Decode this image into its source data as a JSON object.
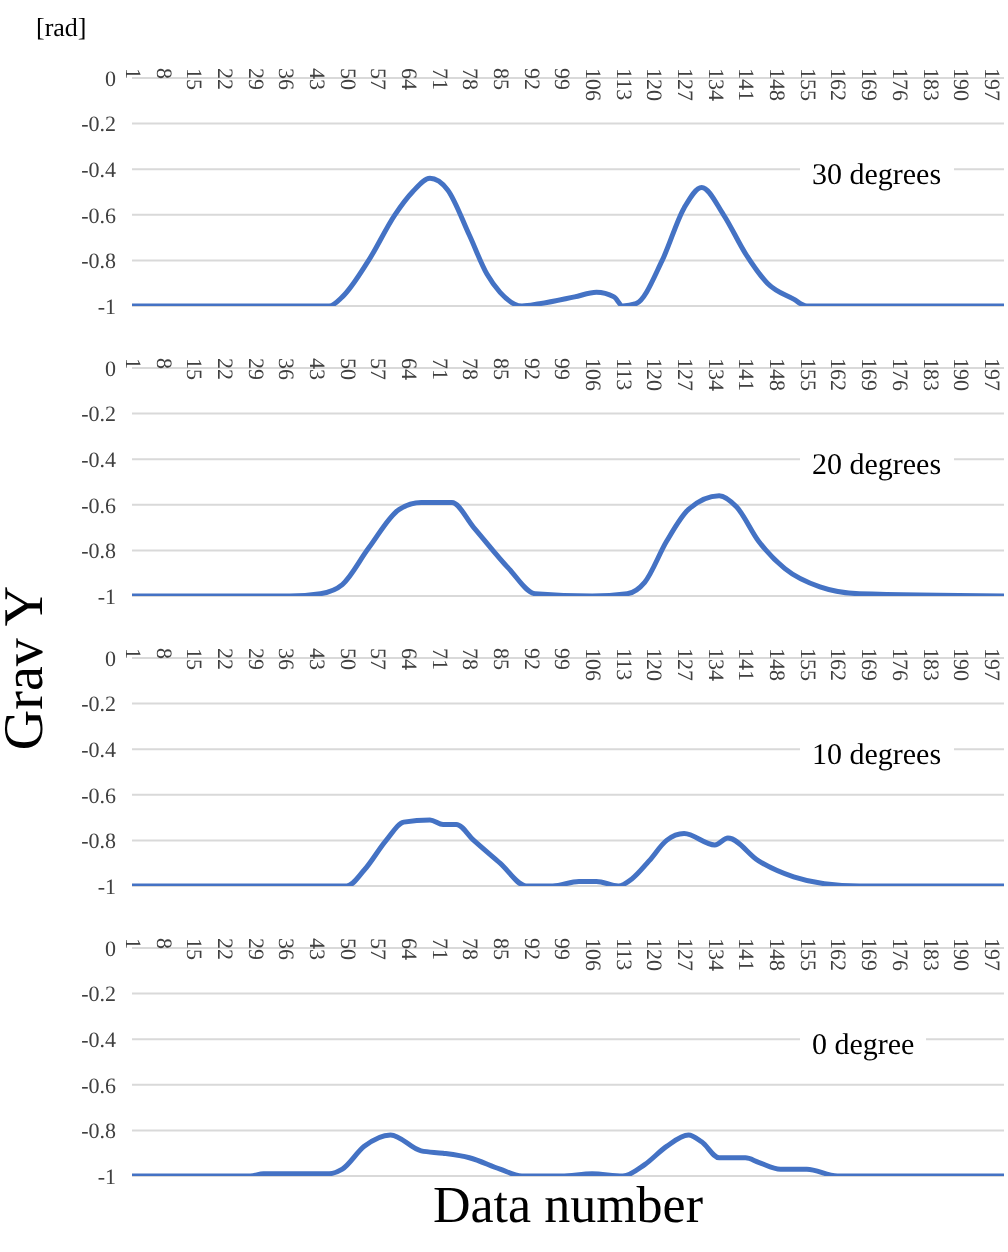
{
  "chart_data": [
    {
      "type": "line",
      "ylabel": "[rad]",
      "annotations": [
        "30 degrees"
      ],
      "color": "#4472c4",
      "grid": "y",
      "xlim": [
        1,
        200
      ],
      "xticks": [
        1,
        8,
        15,
        22,
        29,
        36,
        43,
        50,
        57,
        64,
        71,
        78,
        85,
        92,
        99,
        106,
        113,
        120,
        127,
        134,
        141,
        148,
        155,
        162,
        169,
        176,
        183,
        190,
        197
      ],
      "ylim": [
        -1,
        0
      ],
      "yticks": [
        0,
        -0.2,
        -0.4,
        -0.6,
        -0.8,
        -1
      ],
      "x": [
        1,
        46,
        49,
        55,
        61,
        65,
        69,
        73,
        78,
        82,
        85,
        90,
        94,
        102,
        107,
        111,
        113,
        116,
        122,
        127,
        131,
        136,
        141,
        146,
        152,
        155,
        200
      ],
      "values": [
        -1,
        -1,
        -0.96,
        -0.8,
        -0.6,
        -0.5,
        -0.44,
        -0.49,
        -0.69,
        -0.86,
        -0.94,
        -1,
        -0.99,
        -0.96,
        -0.94,
        -0.96,
        -1,
        -0.99,
        -0.8,
        -0.57,
        -0.48,
        -0.6,
        -0.77,
        -0.9,
        -0.97,
        -1,
        -1
      ]
    },
    {
      "type": "line",
      "annotations": [
        "20 degrees"
      ],
      "color": "#4472c4",
      "grid": "y",
      "xlim": [
        1,
        200
      ],
      "xticks": [
        1,
        8,
        15,
        22,
        29,
        36,
        43,
        50,
        57,
        64,
        71,
        78,
        85,
        92,
        99,
        106,
        113,
        120,
        127,
        134,
        141,
        148,
        155,
        162,
        169,
        176,
        183,
        190,
        197
      ],
      "ylim": [
        -1,
        0
      ],
      "yticks": [
        0,
        -0.2,
        -0.4,
        -0.6,
        -0.8,
        -1
      ],
      "x": [
        1,
        37,
        44,
        49,
        55,
        62,
        67,
        74,
        79,
        87,
        93,
        106,
        114,
        118,
        123,
        128,
        135,
        139,
        144,
        150,
        158,
        167,
        200
      ],
      "values": [
        -1,
        -1,
        -0.99,
        -0.95,
        -0.79,
        -0.62,
        -0.59,
        -0.59,
        -0.7,
        -0.88,
        -0.99,
        -1,
        -0.99,
        -0.94,
        -0.76,
        -0.62,
        -0.56,
        -0.61,
        -0.76,
        -0.88,
        -0.96,
        -0.99,
        -1
      ]
    },
    {
      "type": "line",
      "ylabel": "Grav Y",
      "annotations": [
        "10 degrees"
      ],
      "color": "#4472c4",
      "grid": "y",
      "xlim": [
        1,
        200
      ],
      "xticks": [
        1,
        8,
        15,
        22,
        29,
        36,
        43,
        50,
        57,
        64,
        71,
        78,
        85,
        92,
        99,
        106,
        113,
        120,
        127,
        134,
        141,
        148,
        155,
        162,
        169,
        176,
        183,
        190,
        197
      ],
      "ylim": [
        -1,
        0
      ],
      "yticks": [
        0,
        -0.2,
        -0.4,
        -0.6,
        -0.8,
        -1
      ],
      "x": [
        1,
        50,
        54,
        59,
        63,
        69,
        72,
        75,
        79,
        85,
        91,
        97,
        103,
        107,
        112,
        115,
        119,
        123,
        127,
        134,
        137,
        144,
        152,
        159,
        167,
        200
      ],
      "values": [
        -1,
        -1,
        -0.93,
        -0.8,
        -0.72,
        -0.71,
        -0.73,
        -0.73,
        -0.8,
        -0.9,
        -1,
        -1,
        -0.98,
        -0.98,
        -1,
        -0.97,
        -0.89,
        -0.8,
        -0.77,
        -0.82,
        -0.79,
        -0.89,
        -0.96,
        -0.99,
        -1,
        -1
      ]
    },
    {
      "type": "line",
      "xlabel": "Data number",
      "annotations": [
        "0 degree"
      ],
      "color": "#4472c4",
      "grid": "y",
      "xlim": [
        1,
        200
      ],
      "xticks": [
        1,
        8,
        15,
        22,
        29,
        36,
        43,
        50,
        57,
        64,
        71,
        78,
        85,
        92,
        99,
        106,
        113,
        120,
        127,
        134,
        141,
        148,
        155,
        162,
        169,
        176,
        183,
        190,
        197
      ],
      "ylim": [
        -1,
        0
      ],
      "yticks": [
        0,
        -0.2,
        -0.4,
        -0.6,
        -0.8,
        -1
      ],
      "x": [
        1,
        28,
        31,
        46,
        49,
        54,
        60,
        67,
        72,
        78,
        85,
        90,
        99,
        106,
        113,
        118,
        123,
        128,
        131,
        135,
        141,
        144,
        149,
        155,
        162,
        200
      ],
      "values": [
        -1,
        -1,
        -0.99,
        -0.99,
        -0.97,
        -0.87,
        -0.82,
        -0.89,
        -0.9,
        -0.92,
        -0.97,
        -1,
        -1,
        -0.99,
        -1,
        -0.95,
        -0.87,
        -0.82,
        -0.85,
        -0.92,
        -0.92,
        -0.94,
        -0.97,
        -0.97,
        -1,
        -1
      ]
    }
  ]
}
